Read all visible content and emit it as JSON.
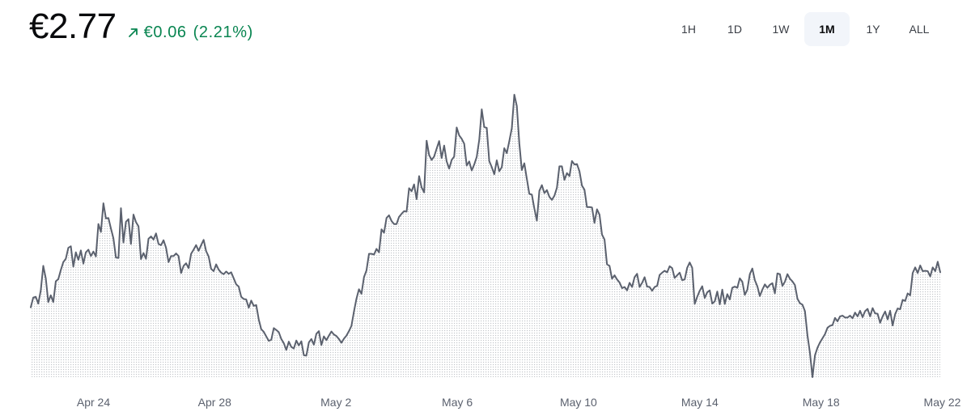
{
  "header": {
    "price": "€2.77",
    "change_amount": "€0.06",
    "change_percent": "(2.21%)",
    "change_direction_icon": "arrow-up-right-icon",
    "change_color": "#098551"
  },
  "ranges": {
    "items": [
      {
        "label": "1H",
        "active": false
      },
      {
        "label": "1D",
        "active": false
      },
      {
        "label": "1W",
        "active": false
      },
      {
        "label": "1M",
        "active": true
      },
      {
        "label": "1Y",
        "active": false
      },
      {
        "label": "ALL",
        "active": false
      }
    ]
  },
  "chart_data": {
    "type": "area",
    "title": "",
    "xlabel": "",
    "ylabel": "",
    "x_range": [
      "Apr 23",
      "May 23"
    ],
    "x_ticks": [
      {
        "label": "Apr 24",
        "day": 1
      },
      {
        "label": "Apr 28",
        "day": 5
      },
      {
        "label": "May 2",
        "day": 9
      },
      {
        "label": "May 6",
        "day": 13
      },
      {
        "label": "May 10",
        "day": 17
      },
      {
        "label": "May 14",
        "day": 21
      },
      {
        "label": "May 18",
        "day": 25
      },
      {
        "label": "May 22",
        "day": 29
      }
    ],
    "line_color": "#5b616e",
    "fill_pattern": "dotted",
    "grid": false,
    "series": [
      {
        "values": [
          2.561,
          2.587,
          2.589,
          2.571,
          2.606,
          2.671,
          2.638,
          2.575,
          2.593,
          2.575,
          2.63,
          2.636,
          2.66,
          2.681,
          2.69,
          2.719,
          2.723,
          2.669,
          2.707,
          2.687,
          2.712,
          2.677,
          2.707,
          2.714,
          2.697,
          2.709,
          2.696,
          2.782,
          2.761,
          2.837,
          2.797,
          2.798,
          2.77,
          2.744,
          2.693,
          2.692,
          2.824,
          2.733,
          2.788,
          2.795,
          2.729,
          2.807,
          2.787,
          2.776,
          2.689,
          2.705,
          2.69,
          2.743,
          2.749,
          2.741,
          2.757,
          2.729,
          2.726,
          2.739,
          2.719,
          2.681,
          2.697,
          2.697,
          2.704,
          2.697,
          2.652,
          2.671,
          2.678,
          2.665,
          2.703,
          2.714,
          2.726,
          2.711,
          2.726,
          2.74,
          2.71,
          2.696,
          2.663,
          2.657,
          2.675,
          2.661,
          2.653,
          2.649,
          2.656,
          2.65,
          2.654,
          2.638,
          2.622,
          2.616,
          2.589,
          2.583,
          2.582,
          2.56,
          2.579,
          2.565,
          2.567,
          2.529,
          2.503,
          2.496,
          2.484,
          2.472,
          2.475,
          2.506,
          2.501,
          2.495,
          2.477,
          2.466,
          2.448,
          2.47,
          2.456,
          2.452,
          2.473,
          2.46,
          2.471,
          2.434,
          2.433,
          2.468,
          2.477,
          2.462,
          2.491,
          2.498,
          2.461,
          2.484,
          2.474,
          2.486,
          2.497,
          2.489,
          2.485,
          2.477,
          2.467,
          2.478,
          2.486,
          2.498,
          2.512,
          2.55,
          2.584,
          2.609,
          2.597,
          2.641,
          2.659,
          2.703,
          2.703,
          2.701,
          2.716,
          2.707,
          2.768,
          2.759,
          2.798,
          2.805,
          2.79,
          2.782,
          2.782,
          2.801,
          2.809,
          2.816,
          2.815,
          2.877,
          2.869,
          2.887,
          2.848,
          2.909,
          2.879,
          2.866,
          3.003,
          2.965,
          2.952,
          2.961,
          2.982,
          3.002,
          2.957,
          2.99,
          2.948,
          2.929,
          2.952,
          2.961,
          3.038,
          3.017,
          3.008,
          2.995,
          2.937,
          2.948,
          2.924,
          2.94,
          2.96,
          3.005,
          3.086,
          3.039,
          3.037,
          2.949,
          2.933,
          2.914,
          2.951,
          2.922,
          2.933,
          2.983,
          2.97,
          3.002,
          3.036,
          3.125,
          3.095,
          2.996,
          2.925,
          2.943,
          2.902,
          2.862,
          2.86,
          2.823,
          2.791,
          2.87,
          2.885,
          2.864,
          2.872,
          2.854,
          2.846,
          2.857,
          2.878,
          2.935,
          2.935,
          2.899,
          2.917,
          2.909,
          2.949,
          2.94,
          2.941,
          2.922,
          2.884,
          2.873,
          2.827,
          2.827,
          2.826,
          2.785,
          2.821,
          2.807,
          2.754,
          2.741,
          2.675,
          2.671,
          2.637,
          2.646,
          2.635,
          2.627,
          2.612,
          2.615,
          2.606,
          2.626,
          2.615,
          2.641,
          2.65,
          2.615,
          2.626,
          2.641,
          2.616,
          2.615,
          2.605,
          2.615,
          2.618,
          2.647,
          2.653,
          2.658,
          2.654,
          2.67,
          2.665,
          2.639,
          2.646,
          2.653,
          2.633,
          2.635,
          2.666,
          2.68,
          2.666,
          2.57,
          2.589,
          2.605,
          2.617,
          2.586,
          2.601,
          2.606,
          2.571,
          2.577,
          2.603,
          2.569,
          2.608,
          2.57,
          2.596,
          2.582,
          2.613,
          2.616,
          2.613,
          2.638,
          2.629,
          2.594,
          2.608,
          2.649,
          2.664,
          2.633,
          2.617,
          2.591,
          2.608,
          2.622,
          2.613,
          2.621,
          2.625,
          2.598,
          2.651,
          2.649,
          2.618,
          2.629,
          2.649,
          2.637,
          2.63,
          2.62,
          2.584,
          2.572,
          2.568,
          2.551,
          2.487,
          2.44,
          2.376,
          2.434,
          2.454,
          2.468,
          2.479,
          2.49,
          2.507,
          2.512,
          2.514,
          2.533,
          2.524,
          2.537,
          2.539,
          2.534,
          2.534,
          2.539,
          2.532,
          2.547,
          2.537,
          2.552,
          2.535,
          2.551,
          2.557,
          2.537,
          2.559,
          2.545,
          2.544,
          2.52,
          2.537,
          2.55,
          2.529,
          2.552,
          2.513,
          2.543,
          2.558,
          2.556,
          2.581,
          2.578,
          2.598,
          2.593,
          2.652,
          2.667,
          2.652,
          2.672,
          2.657,
          2.658,
          2.657,
          2.643,
          2.667,
          2.657,
          2.682,
          2.654
        ]
      }
    ]
  }
}
